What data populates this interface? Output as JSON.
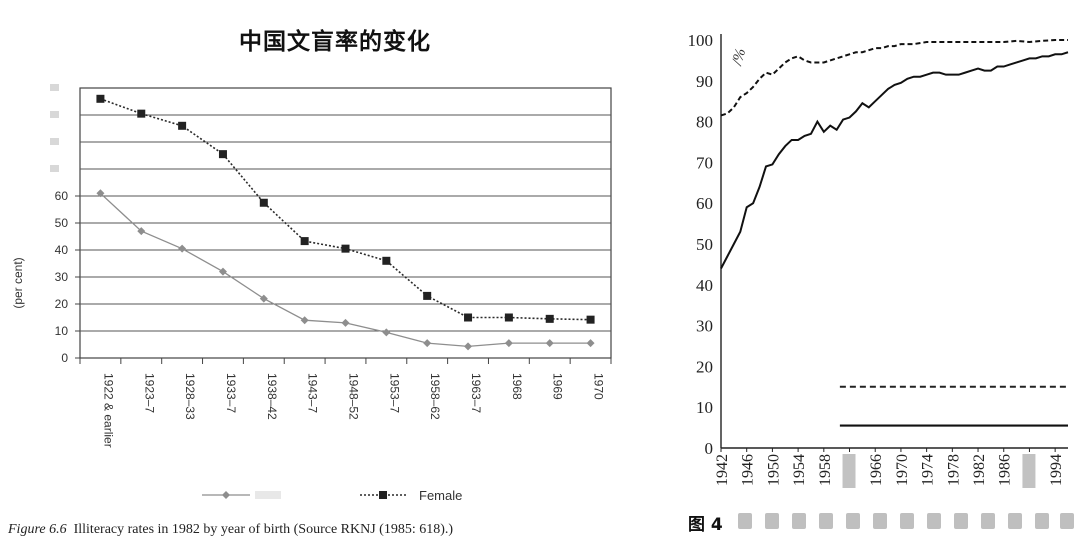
{
  "left_title": "中国文盲率的变化",
  "caption": {
    "fig_label": "Figure 6.6",
    "text": "Illiteracy rates in 1982 by year of birth (Source RKNJ (1985: 618).)"
  },
  "colors": {
    "male_line": "#8e8e8e",
    "female_line": "#2a2a2a",
    "grid": "#555555",
    "axis": "#444444"
  },
  "chart_data": [
    {
      "type": "line",
      "title": "",
      "ylabel": "(per cent)",
      "xlabel": "",
      "ylim": [
        0,
        100
      ],
      "yticks": [
        0,
        10,
        20,
        30,
        40,
        50,
        60
      ],
      "grid": true,
      "legend_position": "bottom",
      "categories": [
        "1922 & earlier",
        "1923–7",
        "1928–33",
        "1933–7",
        "1938–42",
        "1943–7",
        "1948–52",
        "1953–7",
        "1958–62",
        "1963–7",
        "1968",
        "1969",
        "1970"
      ],
      "series": [
        {
          "name": "",
          "marker": "diamond",
          "style": "solid",
          "values": [
            61,
            47,
            40.5,
            32,
            22,
            14,
            13,
            9.5,
            5.5,
            4.3,
            5.5,
            5.5,
            5.5
          ]
        },
        {
          "name": "Female",
          "marker": "square",
          "style": "dotted",
          "values": [
            96,
            90.5,
            86,
            75.5,
            57.5,
            43.3,
            40.5,
            36,
            23,
            15,
            15,
            14.5,
            14.2
          ]
        }
      ]
    },
    {
      "type": "line",
      "title": "",
      "ylabel": "/%",
      "xlabel": "",
      "ylim": [
        0,
        100
      ],
      "yticks": [
        0,
        10,
        20,
        30,
        40,
        50,
        60,
        70,
        80,
        90,
        100
      ],
      "xlim": [
        1942,
        1996
      ],
      "xticks": [
        1942,
        1946,
        1950,
        1954,
        1958,
        1962,
        1966,
        1970,
        1974,
        1978,
        1982,
        1986,
        1990,
        1994
      ],
      "xtick_labels": [
        "1942",
        "1946",
        "1950",
        "1954",
        "1958",
        "",
        "1966",
        "1970",
        "1974",
        "1978",
        "1982",
        "1986",
        "",
        "1994"
      ],
      "grid": false,
      "footer_label": "图 4",
      "series": [
        {
          "name": "",
          "style": "solid",
          "x": [
            1942,
            1943,
            1944,
            1945,
            1946,
            1947,
            1948,
            1949,
            1950,
            1951,
            1952,
            1953,
            1954,
            1955,
            1956,
            1957,
            1958,
            1959,
            1960,
            1961,
            1962,
            1963,
            1964,
            1965,
            1966,
            1967,
            1968,
            1969,
            1970,
            1971,
            1972,
            1973,
            1974,
            1975,
            1976,
            1977,
            1978,
            1979,
            1980,
            1981,
            1982,
            1983,
            1984,
            1985,
            1986,
            1987,
            1988,
            1989,
            1990,
            1991,
            1992,
            1993,
            1994,
            1995,
            1996
          ],
          "y": [
            44,
            47,
            50,
            53,
            59,
            60,
            64,
            69,
            69.5,
            72,
            74,
            75.5,
            75.5,
            76.5,
            77,
            80,
            77.5,
            79,
            78,
            80.5,
            81,
            82.5,
            84.5,
            83.5,
            85,
            86.5,
            88,
            89,
            89.5,
            90.5,
            91,
            91,
            91.5,
            92,
            92,
            91.5,
            91.5,
            91.5,
            92,
            92.5,
            93,
            92.5,
            92.5,
            93.5,
            93.5,
            94,
            94.5,
            95,
            95.5,
            95.5,
            96,
            96,
            96.5,
            96.5,
            97
          ]
        },
        {
          "name": "",
          "style": "dashed",
          "x": [
            1942,
            1943,
            1944,
            1945,
            1946,
            1947,
            1948,
            1949,
            1950,
            1951,
            1952,
            1953,
            1954,
            1955,
            1956,
            1957,
            1958,
            1959,
            1960,
            1961,
            1962,
            1963,
            1964,
            1965,
            1966,
            1967,
            1968,
            1969,
            1970,
            1972,
            1974,
            1976,
            1978,
            1980,
            1982,
            1984,
            1986,
            1988,
            1990,
            1992,
            1994,
            1996
          ],
          "y": [
            81.5,
            82,
            83.5,
            86,
            87,
            88.5,
            90.5,
            92,
            91.5,
            93,
            94.5,
            95.5,
            96,
            95,
            94.5,
            94.5,
            94.5,
            95,
            95.5,
            96,
            96.5,
            97,
            97,
            97.5,
            98,
            98,
            98.5,
            98.5,
            99,
            99,
            99.5,
            99.5,
            99.5,
            99.5,
            99.5,
            99.5,
            99.5,
            99.8,
            99.5,
            99.8,
            100,
            100
          ]
        }
      ]
    }
  ]
}
